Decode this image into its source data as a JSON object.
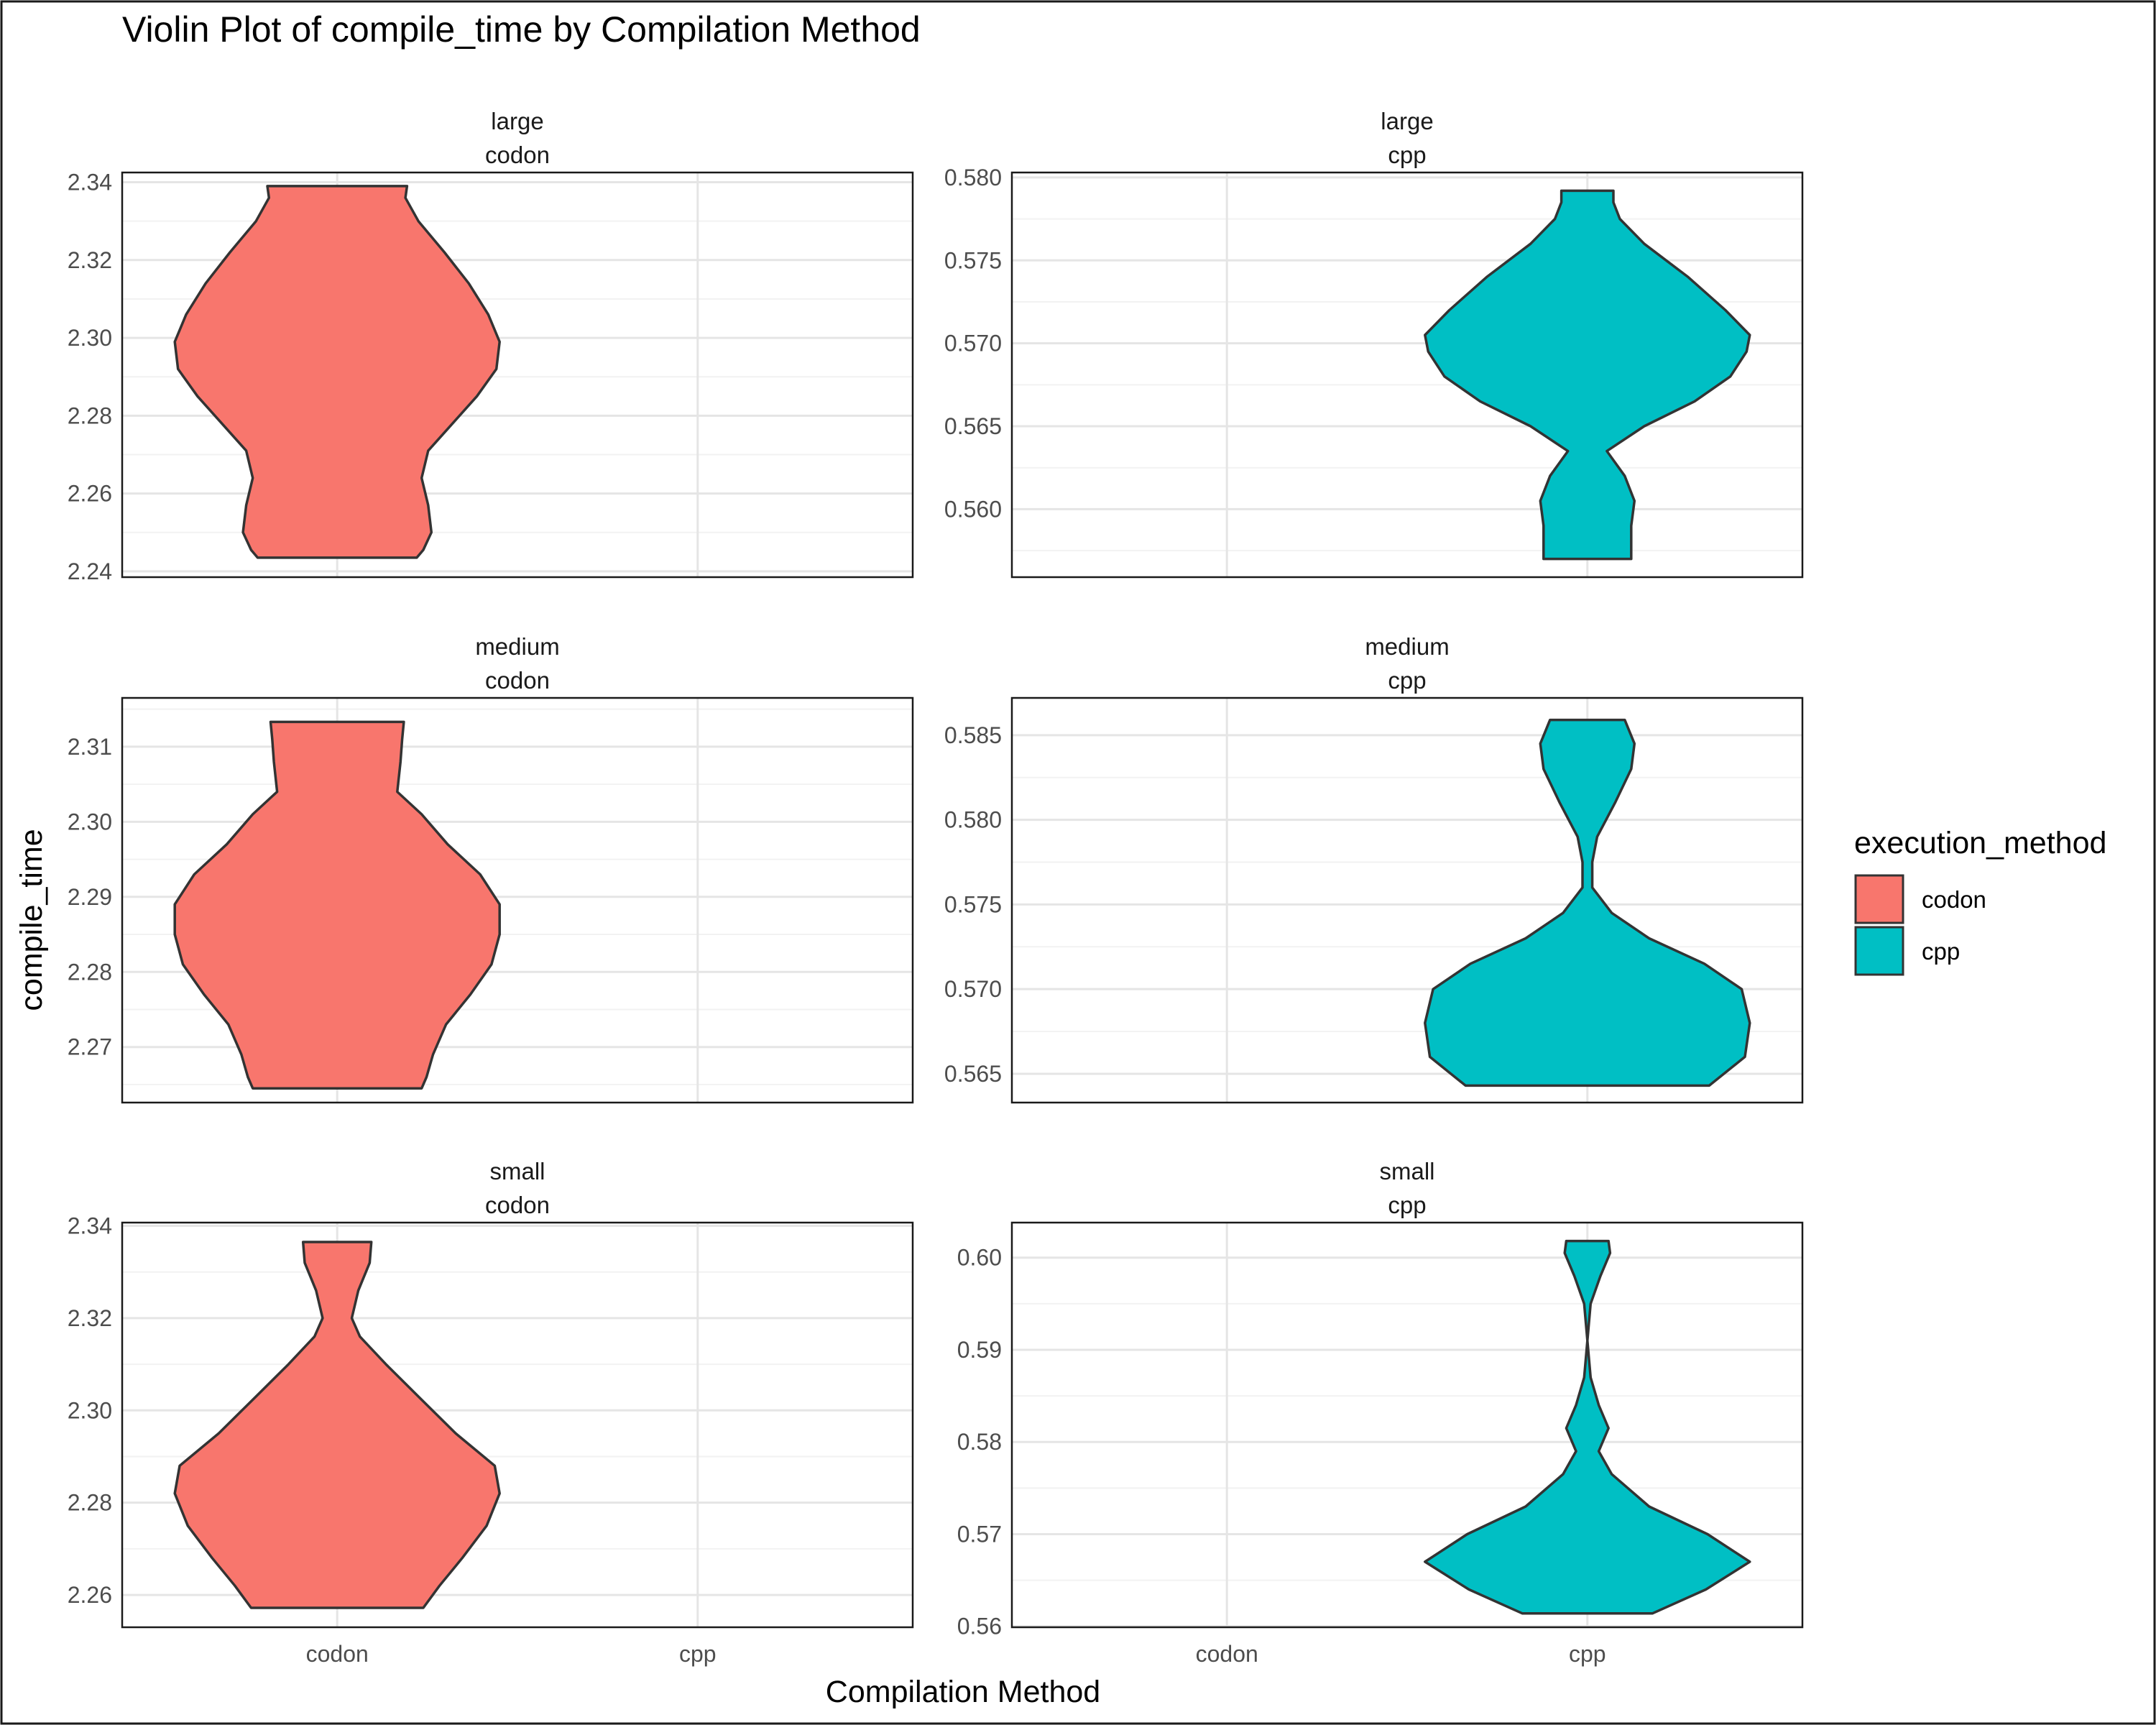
{
  "chart_data": {
    "type": "violin",
    "title": "Violin Plot of compile_time by Compilation Method",
    "xlabel": "Compilation Method",
    "ylabel": "compile_time",
    "categories": [
      "codon",
      "cpp"
    ],
    "legend": {
      "title": "execution_method",
      "position": "right",
      "items": [
        {
          "label": "codon",
          "color": "#F8766D"
        },
        {
          "label": "cpp",
          "color": "#00BFC4"
        }
      ]
    },
    "grid": true,
    "panels": [
      {
        "size": "large",
        "method": "codon",
        "color": "#F8766D",
        "ylim": [
          2.2385,
          2.3425
        ],
        "yticks": [
          2.24,
          2.26,
          2.28,
          2.3,
          2.32,
          2.34
        ],
        "ytick_labels": [
          "2.24",
          "2.26",
          "2.28",
          "2.30",
          "2.32",
          "2.34"
        ],
        "violin": {
          "min": 2.2435,
          "max": 2.339,
          "profile": [
            [
              2.2435,
              0.49
            ],
            [
              2.2455,
              0.53
            ],
            [
              2.25,
              0.58
            ],
            [
              2.257,
              0.56
            ],
            [
              2.264,
              0.52
            ],
            [
              2.271,
              0.56
            ],
            [
              2.278,
              0.71
            ],
            [
              2.285,
              0.86
            ],
            [
              2.292,
              0.98
            ],
            [
              2.299,
              1.0
            ],
            [
              2.306,
              0.93
            ],
            [
              2.314,
              0.81
            ],
            [
              2.322,
              0.66
            ],
            [
              2.33,
              0.5
            ],
            [
              2.336,
              0.42
            ],
            [
              2.339,
              0.43
            ]
          ]
        }
      },
      {
        "size": "large",
        "method": "cpp",
        "color": "#00BFC4",
        "ylim": [
          0.5559,
          0.5803
        ],
        "yticks": [
          0.56,
          0.565,
          0.57,
          0.575,
          0.58
        ],
        "ytick_labels": [
          "0.560",
          "0.565",
          "0.570",
          "0.575",
          "0.580"
        ],
        "violin": {
          "min": 0.557,
          "max": 0.5792,
          "profile": [
            [
              0.557,
              0.27
            ],
            [
              0.559,
              0.27
            ],
            [
              0.5605,
              0.29
            ],
            [
              0.562,
              0.23
            ],
            [
              0.5635,
              0.12
            ],
            [
              0.565,
              0.35
            ],
            [
              0.5665,
              0.66
            ],
            [
              0.568,
              0.88
            ],
            [
              0.5695,
              0.98
            ],
            [
              0.5705,
              1.0
            ],
            [
              0.572,
              0.85
            ],
            [
              0.574,
              0.62
            ],
            [
              0.576,
              0.35
            ],
            [
              0.5775,
              0.2
            ],
            [
              0.5785,
              0.16
            ],
            [
              0.5792,
              0.16
            ]
          ]
        }
      },
      {
        "size": "medium",
        "method": "codon",
        "color": "#F8766D",
        "ylim": [
          2.2626,
          2.3165
        ],
        "yticks": [
          2.27,
          2.28,
          2.29,
          2.3,
          2.31
        ],
        "ytick_labels": [
          "2.27",
          "2.28",
          "2.29",
          "2.30",
          "2.31"
        ],
        "violin": {
          "min": 2.2645,
          "max": 2.3133,
          "profile": [
            [
              2.2645,
              0.52
            ],
            [
              2.266,
              0.55
            ],
            [
              2.269,
              0.59
            ],
            [
              2.273,
              0.67
            ],
            [
              2.277,
              0.82
            ],
            [
              2.281,
              0.95
            ],
            [
              2.285,
              1.0
            ],
            [
              2.289,
              1.0
            ],
            [
              2.293,
              0.88
            ],
            [
              2.297,
              0.68
            ],
            [
              2.301,
              0.52
            ],
            [
              2.304,
              0.37
            ],
            [
              2.308,
              0.39
            ],
            [
              2.311,
              0.4
            ],
            [
              2.3133,
              0.41
            ]
          ]
        }
      },
      {
        "size": "medium",
        "method": "cpp",
        "color": "#00BFC4",
        "ylim": [
          0.5633,
          0.5872
        ],
        "yticks": [
          0.565,
          0.57,
          0.575,
          0.58,
          0.585
        ],
        "ytick_labels": [
          "0.565",
          "0.570",
          "0.575",
          "0.580",
          "0.585"
        ],
        "violin": {
          "min": 0.5643,
          "max": 0.5859,
          "profile": [
            [
              0.5643,
              0.75
            ],
            [
              0.566,
              0.97
            ],
            [
              0.568,
              1.0
            ],
            [
              0.57,
              0.95
            ],
            [
              0.5715,
              0.72
            ],
            [
              0.573,
              0.38
            ],
            [
              0.5745,
              0.15
            ],
            [
              0.576,
              0.03
            ],
            [
              0.5775,
              0.03
            ],
            [
              0.579,
              0.06
            ],
            [
              0.581,
              0.17
            ],
            [
              0.583,
              0.27
            ],
            [
              0.5845,
              0.29
            ],
            [
              0.5859,
              0.23
            ]
          ]
        }
      },
      {
        "size": "small",
        "method": "codon",
        "color": "#F8766D",
        "ylim": [
          2.253,
          2.3407
        ],
        "yticks": [
          2.26,
          2.28,
          2.3,
          2.32,
          2.34
        ],
        "ytick_labels": [
          "2.26",
          "2.28",
          "2.30",
          "2.32",
          "2.34"
        ],
        "violin": {
          "min": 2.2572,
          "max": 2.3365,
          "profile": [
            [
              2.2572,
              0.53
            ],
            [
              2.262,
              0.63
            ],
            [
              2.268,
              0.77
            ],
            [
              2.275,
              0.92
            ],
            [
              2.282,
              1.0
            ],
            [
              2.288,
              0.97
            ],
            [
              2.295,
              0.73
            ],
            [
              2.303,
              0.5
            ],
            [
              2.31,
              0.3
            ],
            [
              2.316,
              0.14
            ],
            [
              2.32,
              0.09
            ],
            [
              2.326,
              0.13
            ],
            [
              2.332,
              0.2
            ],
            [
              2.3365,
              0.21
            ]
          ]
        }
      },
      {
        "size": "small",
        "method": "cpp",
        "color": "#00BFC4",
        "ylim": [
          0.5599,
          0.6038
        ],
        "yticks": [
          0.56,
          0.57,
          0.58,
          0.59,
          0.6
        ],
        "ytick_labels": [
          "0.56",
          "0.57",
          "0.58",
          "0.59",
          "0.60"
        ],
        "violin": {
          "min": 0.5614,
          "max": 0.6018,
          "profile": [
            [
              0.5614,
              0.4
            ],
            [
              0.564,
              0.73
            ],
            [
              0.567,
              1.0
            ],
            [
              0.57,
              0.74
            ],
            [
              0.573,
              0.38
            ],
            [
              0.5765,
              0.15
            ],
            [
              0.579,
              0.07
            ],
            [
              0.5815,
              0.13
            ],
            [
              0.584,
              0.07
            ],
            [
              0.587,
              0.02
            ],
            [
              0.591,
              0.0
            ],
            [
              0.595,
              0.02
            ],
            [
              0.598,
              0.08
            ],
            [
              0.6005,
              0.14
            ],
            [
              0.6018,
              0.13
            ]
          ]
        }
      }
    ]
  }
}
